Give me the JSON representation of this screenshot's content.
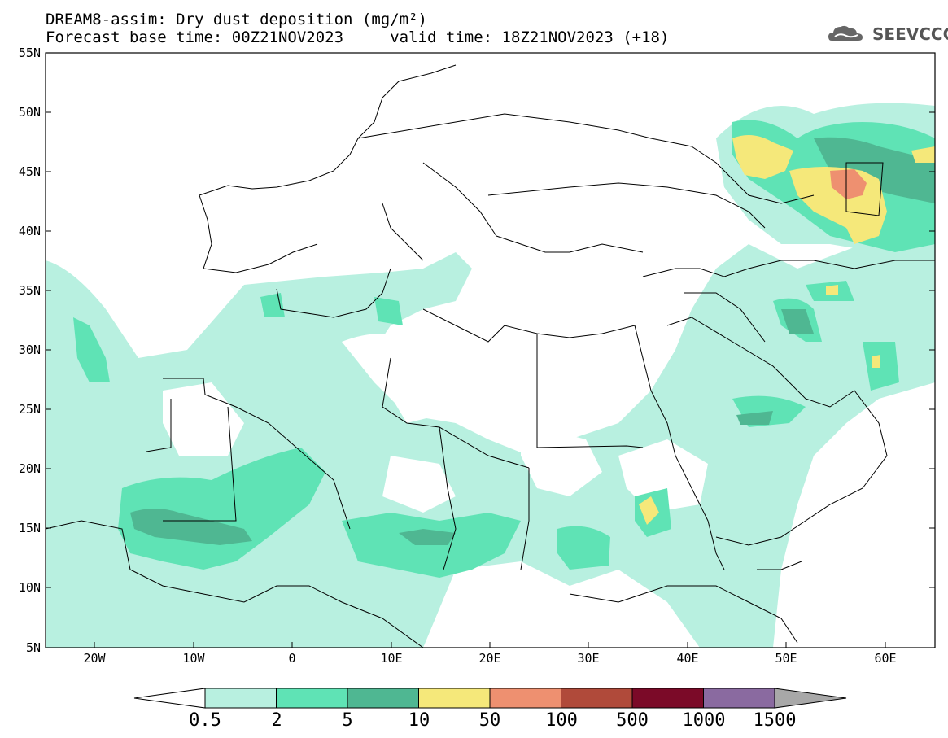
{
  "title": {
    "line1": "DREAM8-assim: Dry dust deposition (mg/m²)",
    "line2": "Forecast base time: 00Z21NOV2023     valid time: 18Z21NOV2023 (+18)"
  },
  "logo": {
    "text": "SEEVCCC",
    "icon": "cloud-icon"
  },
  "axes": {
    "lat_labels": [
      "55N",
      "50N",
      "45N",
      "40N",
      "35N",
      "30N",
      "25N",
      "20N",
      "15N",
      "10N",
      "5N"
    ],
    "lon_labels": [
      "20W",
      "10W",
      "0",
      "10E",
      "20E",
      "30E",
      "40E",
      "50E",
      "60E"
    ]
  },
  "colorbar": {
    "labels": [
      "0.5",
      "2",
      "5",
      "10",
      "50",
      "100",
      "500",
      "1000",
      "1500"
    ],
    "colors": [
      "#b8f0e0",
      "#5fe3b5",
      "#4fb792",
      "#f5e87a",
      "#ee9070",
      "#b04a3a",
      "#7b0a28",
      "#8a6aa0",
      "#a8a8a8"
    ]
  }
}
